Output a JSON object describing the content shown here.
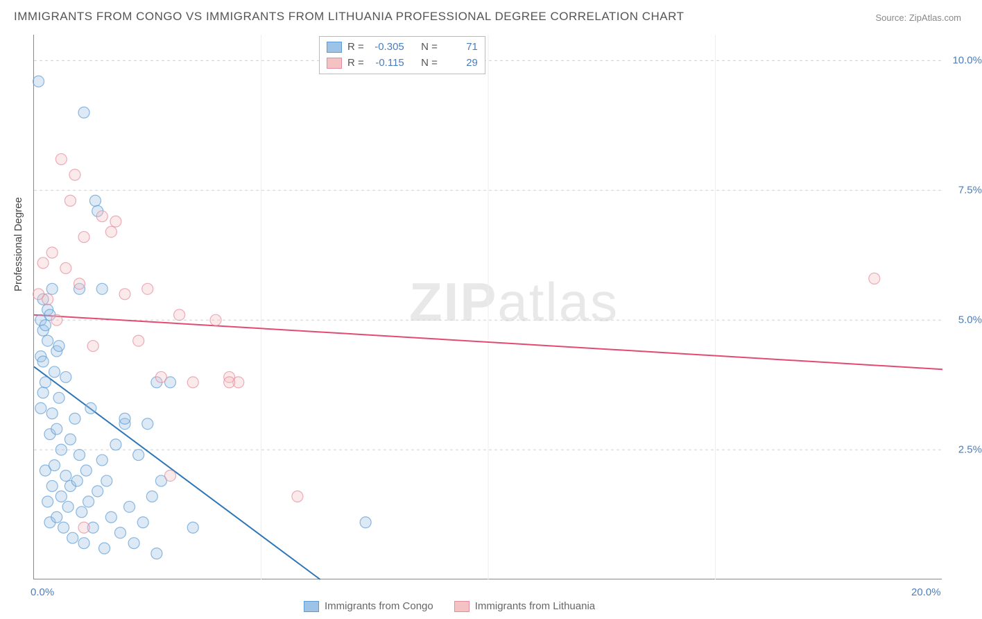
{
  "title": "IMMIGRANTS FROM CONGO VS IMMIGRANTS FROM LITHUANIA PROFESSIONAL DEGREE CORRELATION CHART",
  "source": "Source: ZipAtlas.com",
  "y_axis_title": "Professional Degree",
  "watermark": "ZIPatlas",
  "chart": {
    "type": "scatter",
    "xlim": [
      0,
      20
    ],
    "ylim": [
      0,
      10.5
    ],
    "x_ticks": [
      0,
      5,
      10,
      15,
      20
    ],
    "x_tick_labels": [
      "0.0%",
      "",
      "",
      "",
      "20.0%"
    ],
    "y_ticks": [
      2.5,
      5.0,
      7.5,
      10.0
    ],
    "y_tick_labels": [
      "2.5%",
      "5.0%",
      "7.5%",
      "10.0%"
    ],
    "grid_color": "#d0d0d0",
    "background_color": "#ffffff",
    "axis_color": "#888888",
    "tick_label_color": "#4a7ebb",
    "point_radius": 8,
    "series": [
      {
        "name": "Immigrants from Congo",
        "color_fill": "#9dc3e6",
        "color_stroke": "#5b9bd5",
        "R": "-0.305",
        "N": "71",
        "trend": {
          "x1": 0,
          "y1": 4.1,
          "x2": 6.3,
          "y2": 0,
          "color": "#2e75b6"
        },
        "points": [
          [
            0.1,
            9.6
          ],
          [
            0.15,
            4.3
          ],
          [
            0.15,
            5.0
          ],
          [
            0.2,
            4.8
          ],
          [
            0.2,
            4.2
          ],
          [
            0.2,
            3.6
          ],
          [
            0.2,
            5.4
          ],
          [
            0.25,
            3.8
          ],
          [
            0.25,
            2.1
          ],
          [
            0.3,
            1.5
          ],
          [
            0.3,
            4.6
          ],
          [
            0.3,
            5.2
          ],
          [
            0.35,
            2.8
          ],
          [
            0.35,
            1.1
          ],
          [
            0.4,
            3.2
          ],
          [
            0.4,
            1.8
          ],
          [
            0.4,
            5.6
          ],
          [
            0.45,
            2.2
          ],
          [
            0.5,
            1.2
          ],
          [
            0.5,
            2.9
          ],
          [
            0.5,
            4.4
          ],
          [
            0.55,
            3.5
          ],
          [
            0.6,
            1.6
          ],
          [
            0.6,
            2.5
          ],
          [
            0.65,
            1.0
          ],
          [
            0.7,
            3.9
          ],
          [
            0.7,
            2.0
          ],
          [
            0.75,
            1.4
          ],
          [
            0.8,
            2.7
          ],
          [
            0.8,
            1.8
          ],
          [
            0.85,
            0.8
          ],
          [
            0.9,
            3.1
          ],
          [
            0.95,
            1.9
          ],
          [
            1.0,
            2.4
          ],
          [
            1.0,
            5.6
          ],
          [
            1.05,
            1.3
          ],
          [
            1.1,
            9.0
          ],
          [
            1.1,
            0.7
          ],
          [
            1.15,
            2.1
          ],
          [
            1.2,
            1.5
          ],
          [
            1.25,
            3.3
          ],
          [
            1.3,
            1.0
          ],
          [
            1.35,
            7.3
          ],
          [
            1.4,
            1.7
          ],
          [
            1.4,
            7.1
          ],
          [
            1.5,
            2.3
          ],
          [
            1.5,
            5.6
          ],
          [
            1.55,
            0.6
          ],
          [
            1.6,
            1.9
          ],
          [
            1.7,
            1.2
          ],
          [
            1.8,
            2.6
          ],
          [
            1.9,
            0.9
          ],
          [
            2.0,
            3.0
          ],
          [
            2.0,
            3.1
          ],
          [
            2.1,
            1.4
          ],
          [
            2.2,
            0.7
          ],
          [
            2.3,
            2.4
          ],
          [
            2.4,
            1.1
          ],
          [
            2.5,
            3.0
          ],
          [
            2.6,
            1.6
          ],
          [
            2.7,
            0.5
          ],
          [
            2.8,
            1.9
          ],
          [
            2.7,
            3.8
          ],
          [
            3.0,
            3.8
          ],
          [
            3.5,
            1.0
          ],
          [
            7.3,
            1.1
          ],
          [
            0.15,
            3.3
          ],
          [
            0.25,
            4.9
          ],
          [
            0.35,
            5.1
          ],
          [
            0.45,
            4.0
          ],
          [
            0.55,
            4.5
          ]
        ]
      },
      {
        "name": "Immigrants from Lithuania",
        "color_fill": "#f4c2c2",
        "color_stroke": "#e68a9f",
        "R": "-0.115",
        "N": "29",
        "trend": {
          "x1": 0,
          "y1": 5.1,
          "x2": 20,
          "y2": 4.05,
          "color": "#e34a6f"
        },
        "points": [
          [
            0.1,
            5.5
          ],
          [
            0.2,
            6.1
          ],
          [
            0.3,
            5.4
          ],
          [
            0.4,
            6.3
          ],
          [
            0.5,
            5.0
          ],
          [
            0.6,
            8.1
          ],
          [
            0.7,
            6.0
          ],
          [
            0.8,
            7.3
          ],
          [
            0.9,
            7.8
          ],
          [
            1.0,
            5.7
          ],
          [
            1.1,
            6.6
          ],
          [
            1.3,
            4.5
          ],
          [
            1.5,
            7.0
          ],
          [
            1.7,
            6.7
          ],
          [
            1.8,
            6.9
          ],
          [
            2.0,
            5.5
          ],
          [
            1.1,
            1.0
          ],
          [
            2.3,
            4.6
          ],
          [
            2.5,
            5.6
          ],
          [
            2.8,
            3.9
          ],
          [
            3.0,
            2.0
          ],
          [
            3.2,
            5.1
          ],
          [
            3.5,
            3.8
          ],
          [
            4.0,
            5.0
          ],
          [
            4.3,
            3.9
          ],
          [
            4.5,
            3.8
          ],
          [
            5.8,
            1.6
          ],
          [
            4.3,
            3.8
          ],
          [
            18.5,
            5.8
          ]
        ]
      }
    ]
  },
  "legend_top": {
    "R_label": "R =",
    "N_label": "N ="
  },
  "legend_bottom": {
    "items": [
      "Immigrants from Congo",
      "Immigrants from Lithuania"
    ]
  }
}
